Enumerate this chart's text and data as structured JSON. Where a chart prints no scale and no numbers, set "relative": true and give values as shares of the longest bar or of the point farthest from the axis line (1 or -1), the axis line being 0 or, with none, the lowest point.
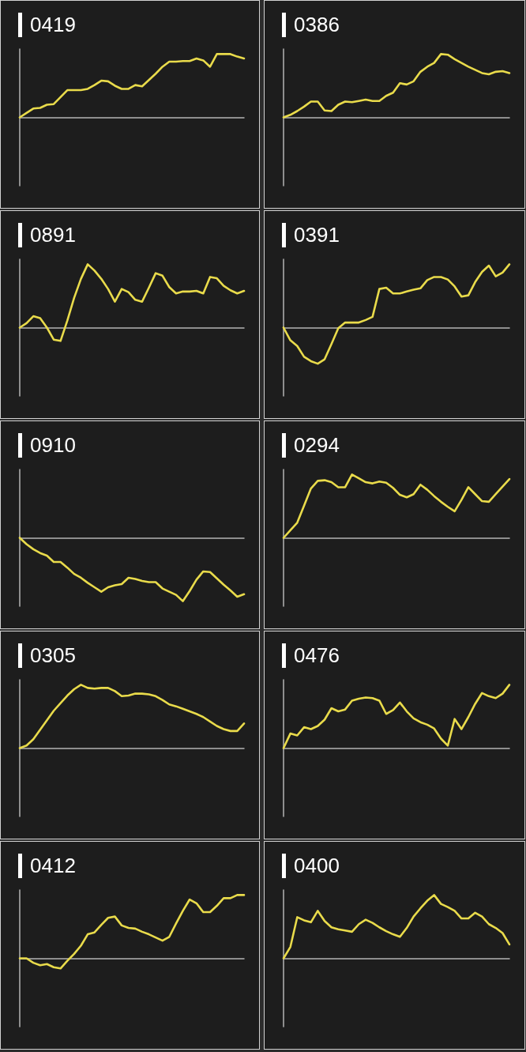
{
  "chart_data": [
    {
      "type": "line",
      "title": "0419",
      "relative": true,
      "marker": "none",
      "color": "#e9db4b",
      "categories": [
        null,
        null,
        null,
        null,
        null,
        null,
        null,
        null,
        null,
        null,
        null,
        null,
        null,
        null,
        null,
        null,
        null,
        null,
        null,
        null,
        null,
        null,
        null,
        null,
        null,
        null,
        null,
        null,
        null,
        null,
        null,
        null,
        null,
        null
      ],
      "values": [
        0,
        0.07,
        0.14,
        0.15,
        0.2,
        0.21,
        0.32,
        0.43,
        0.43,
        0.43,
        0.45,
        0.51,
        0.58,
        0.57,
        0.5,
        0.45,
        0.45,
        0.51,
        0.49,
        0.59,
        0.69,
        0.8,
        0.88,
        0.88,
        0.89,
        0.89,
        0.93,
        0.9,
        0.8,
        1,
        1,
        1,
        0.96,
        0.93
      ]
    },
    {
      "type": "line",
      "title": "0386",
      "relative": true,
      "marker": "none",
      "color": "#e9db4b",
      "categories": [
        null,
        null,
        null,
        null,
        null,
        null,
        null,
        null,
        null,
        null,
        null,
        null,
        null,
        null,
        null,
        null,
        null,
        null,
        null,
        null,
        null,
        null,
        null,
        null,
        null,
        null,
        null,
        null,
        null,
        null,
        null,
        null,
        null,
        null
      ],
      "values": [
        0,
        0.04,
        0.1,
        0.17,
        0.25,
        0.25,
        0.11,
        0.1,
        0.2,
        0.25,
        0.24,
        0.26,
        0.28,
        0.26,
        0.26,
        0.34,
        0.39,
        0.54,
        0.52,
        0.57,
        0.72,
        0.8,
        0.86,
        1,
        0.99,
        0.92,
        0.86,
        0.8,
        0.75,
        0.7,
        0.68,
        0.72,
        0.73,
        0.7
      ]
    },
    {
      "type": "line",
      "title": "0891",
      "relative": true,
      "marker": "none",
      "color": "#e9db4b",
      "categories": [
        null,
        null,
        null,
        null,
        null,
        null,
        null,
        null,
        null,
        null,
        null,
        null,
        null,
        null,
        null,
        null,
        null,
        null,
        null,
        null,
        null,
        null,
        null,
        null,
        null,
        null,
        null,
        null,
        null,
        null,
        null,
        null,
        null,
        null
      ],
      "values": [
        0,
        0.07,
        0.18,
        0.15,
        0,
        -0.19,
        -0.21,
        0.11,
        0.47,
        0.77,
        1,
        0.9,
        0.77,
        0.61,
        0.41,
        0.61,
        0.56,
        0.44,
        0.41,
        0.63,
        0.86,
        0.82,
        0.64,
        0.54,
        0.57,
        0.57,
        0.58,
        0.54,
        0.8,
        0.78,
        0.66,
        0.59,
        0.54,
        0.58
      ]
    },
    {
      "type": "line",
      "title": "0391",
      "relative": true,
      "marker": "none",
      "color": "#e9db4b",
      "categories": [
        null,
        null,
        null,
        null,
        null,
        null,
        null,
        null,
        null,
        null,
        null,
        null,
        null,
        null,
        null,
        null,
        null,
        null,
        null,
        null,
        null,
        null,
        null,
        null,
        null,
        null,
        null,
        null,
        null,
        null,
        null,
        null,
        null,
        null
      ],
      "values": [
        0,
        -0.2,
        -0.29,
        -0.46,
        -0.53,
        -0.57,
        -0.5,
        -0.26,
        -0.01,
        0.08,
        0.08,
        0.08,
        0.12,
        0.17,
        0.61,
        0.63,
        0.54,
        0.54,
        0.57,
        0.6,
        0.62,
        0.75,
        0.8,
        0.8,
        0.76,
        0.65,
        0.49,
        0.51,
        0.72,
        0.88,
        0.98,
        0.81,
        0.87,
        1
      ]
    },
    {
      "type": "line",
      "title": "0910",
      "relative": true,
      "marker": "none",
      "color": "#e9db4b",
      "categories": [
        null,
        null,
        null,
        null,
        null,
        null,
        null,
        null,
        null,
        null,
        null,
        null,
        null,
        null,
        null,
        null,
        null,
        null,
        null,
        null,
        null,
        null,
        null,
        null,
        null,
        null,
        null,
        null,
        null,
        null,
        null,
        null,
        null,
        null
      ],
      "values": [
        0,
        -0.1,
        -0.18,
        -0.24,
        -0.28,
        -0.38,
        -0.38,
        -0.47,
        -0.57,
        -0.63,
        -0.71,
        -0.78,
        -0.85,
        -0.78,
        -0.75,
        -0.73,
        -0.63,
        -0.65,
        -0.68,
        -0.7,
        -0.7,
        -0.8,
        -0.85,
        -0.9,
        -1,
        -0.84,
        -0.66,
        -0.53,
        -0.54,
        -0.64,
        -0.74,
        -0.83,
        -0.93,
        -0.89
      ]
    },
    {
      "type": "line",
      "title": "0294",
      "relative": true,
      "marker": "none",
      "color": "#e9db4b",
      "categories": [
        null,
        null,
        null,
        null,
        null,
        null,
        null,
        null,
        null,
        null,
        null,
        null,
        null,
        null,
        null,
        null,
        null,
        null,
        null,
        null,
        null,
        null,
        null,
        null,
        null,
        null,
        null,
        null,
        null,
        null,
        null,
        null,
        null,
        null
      ],
      "values": [
        0,
        0.12,
        0.24,
        0.51,
        0.78,
        0.9,
        0.91,
        0.88,
        0.8,
        0.8,
        1,
        0.94,
        0.88,
        0.86,
        0.89,
        0.87,
        0.79,
        0.68,
        0.64,
        0.69,
        0.84,
        0.76,
        0.66,
        0.57,
        0.49,
        0.42,
        0.6,
        0.8,
        0.69,
        0.58,
        0.57,
        0.69,
        0.81,
        0.93
      ]
    },
    {
      "type": "line",
      "title": "0305",
      "relative": true,
      "marker": "none",
      "color": "#e9db4b",
      "categories": [
        null,
        null,
        null,
        null,
        null,
        null,
        null,
        null,
        null,
        null,
        null,
        null,
        null,
        null,
        null,
        null,
        null,
        null,
        null,
        null,
        null,
        null,
        null,
        null,
        null,
        null,
        null,
        null,
        null,
        null,
        null,
        null,
        null,
        null
      ],
      "values": [
        0,
        0.04,
        0.14,
        0.29,
        0.44,
        0.59,
        0.71,
        0.83,
        0.93,
        1,
        0.95,
        0.94,
        0.95,
        0.95,
        0.9,
        0.82,
        0.83,
        0.86,
        0.86,
        0.85,
        0.82,
        0.76,
        0.69,
        0.66,
        0.62,
        0.58,
        0.54,
        0.49,
        0.42,
        0.35,
        0.3,
        0.27,
        0.27,
        0.39
      ]
    },
    {
      "type": "line",
      "title": "0476",
      "relative": true,
      "marker": "none",
      "color": "#e9db4b",
      "categories": [
        null,
        null,
        null,
        null,
        null,
        null,
        null,
        null,
        null,
        null,
        null,
        null,
        null,
        null,
        null,
        null,
        null,
        null,
        null,
        null,
        null,
        null,
        null,
        null,
        null,
        null,
        null,
        null,
        null,
        null,
        null,
        null,
        null,
        null
      ],
      "values": [
        0,
        0.23,
        0.2,
        0.33,
        0.3,
        0.35,
        0.45,
        0.63,
        0.58,
        0.61,
        0.75,
        0.78,
        0.8,
        0.79,
        0.75,
        0.54,
        0.6,
        0.72,
        0.58,
        0.47,
        0.41,
        0.37,
        0.31,
        0.15,
        0.04,
        0.46,
        0.3,
        0.49,
        0.7,
        0.87,
        0.82,
        0.79,
        0.86,
        1
      ]
    },
    {
      "type": "line",
      "title": "0412",
      "relative": true,
      "marker": "none",
      "color": "#e9db4b",
      "categories": [
        null,
        null,
        null,
        null,
        null,
        null,
        null,
        null,
        null,
        null,
        null,
        null,
        null,
        null,
        null,
        null,
        null,
        null,
        null,
        null,
        null,
        null,
        null,
        null,
        null,
        null,
        null,
        null,
        null,
        null,
        null,
        null,
        null,
        null
      ],
      "values": [
        0,
        0,
        -0.07,
        -0.11,
        -0.09,
        -0.14,
        -0.16,
        -0.04,
        0.07,
        0.2,
        0.38,
        0.41,
        0.53,
        0.64,
        0.66,
        0.52,
        0.48,
        0.47,
        0.42,
        0.38,
        0.33,
        0.28,
        0.34,
        0.55,
        0.75,
        0.93,
        0.87,
        0.73,
        0.73,
        0.83,
        0.95,
        0.95,
        1,
        1
      ]
    },
    {
      "type": "line",
      "title": "0400",
      "relative": true,
      "marker": "none",
      "color": "#e9db4b",
      "categories": [
        null,
        null,
        null,
        null,
        null,
        null,
        null,
        null,
        null,
        null,
        null,
        null,
        null,
        null,
        null,
        null,
        null,
        null,
        null,
        null,
        null,
        null,
        null,
        null,
        null,
        null,
        null,
        null,
        null,
        null,
        null,
        null,
        null,
        null
      ],
      "values": [
        0,
        0.18,
        0.65,
        0.6,
        0.57,
        0.75,
        0.59,
        0.49,
        0.46,
        0.44,
        0.42,
        0.54,
        0.61,
        0.56,
        0.49,
        0.43,
        0.38,
        0.34,
        0.48,
        0.66,
        0.79,
        0.91,
        1,
        0.86,
        0.81,
        0.75,
        0.63,
        0.63,
        0.72,
        0.66,
        0.54,
        0.48,
        0.4,
        0.22
      ]
    }
  ]
}
